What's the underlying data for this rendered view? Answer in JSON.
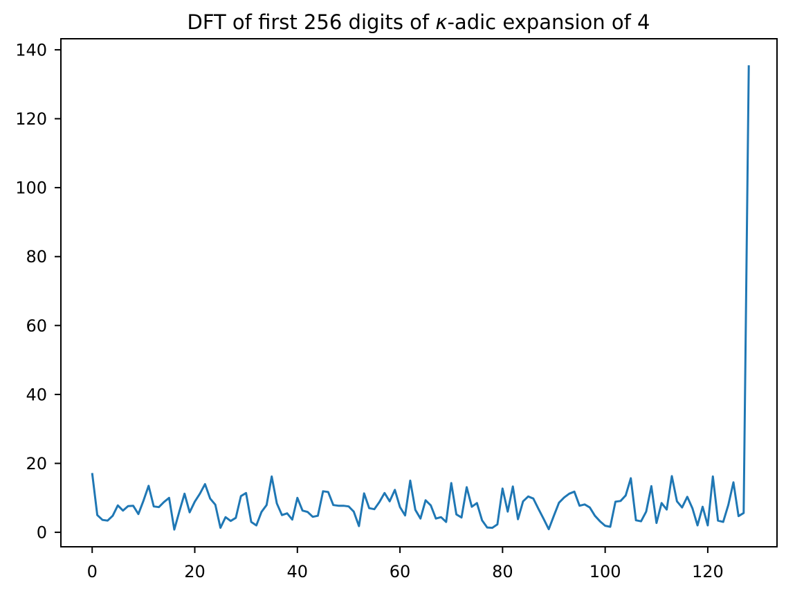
{
  "figure": {
    "title": "DFT of first 256 digits of κ-adic expansion of 4",
    "title_parts": {
      "prefix": "DFT of first 256 digits of ",
      "kappa": "κ",
      "suffix": "-adic expansion of 4"
    },
    "background_color": "#ffffff",
    "spine_color": "#000000",
    "tick_color": "#000000"
  },
  "chart_data": {
    "type": "line",
    "title": "DFT of first 256 digits of κ-adic expansion of 4",
    "xlabel": "",
    "ylabel": "",
    "grid": false,
    "legend": null,
    "line_color": "#1f77b4",
    "line_width": 3,
    "x_start": 0,
    "x_step": 1,
    "x_range": [
      0,
      128
    ],
    "xlim": [
      -6.1,
      133.5
    ],
    "ylim": [
      -4.2,
      143.2
    ],
    "xticks": [
      0,
      20,
      40,
      60,
      80,
      100,
      120
    ],
    "yticks": [
      0,
      20,
      40,
      60,
      80,
      100,
      120,
      140
    ],
    "values": [
      17.2,
      5.0,
      3.6,
      3.4,
      4.8,
      7.8,
      6.3,
      7.6,
      7.7,
      5.3,
      9.2,
      13.5,
      7.5,
      7.3,
      8.8,
      10.0,
      0.8,
      6.1,
      11.2,
      5.8,
      8.9,
      11.2,
      14.0,
      9.8,
      8.0,
      1.3,
      4.4,
      3.3,
      4.2,
      10.5,
      11.4,
      3.0,
      2.0,
      5.9,
      7.9,
      16.2,
      8.4,
      5.0,
      5.5,
      3.7,
      10.0,
      6.3,
      5.9,
      4.5,
      4.8,
      11.9,
      11.7,
      7.9,
      7.7,
      7.7,
      7.5,
      6.0,
      1.8,
      11.3,
      7.0,
      6.7,
      8.8,
      11.4,
      9.0,
      12.3,
      7.3,
      4.9,
      15.0,
      6.5,
      4.0,
      9.3,
      7.8,
      4.0,
      4.4,
      3.0,
      14.3,
      5.2,
      4.3,
      13.1,
      7.4,
      8.5,
      3.5,
      1.4,
      1.3,
      2.3,
      12.7,
      6.0,
      13.3,
      3.8,
      9.0,
      10.4,
      9.8,
      6.8,
      3.9,
      0.9,
      4.8,
      8.6,
      10.1,
      11.2,
      11.8,
      7.7,
      8.1,
      7.2,
      4.8,
      3.2,
      1.9,
      1.6,
      8.9,
      9.1,
      10.7,
      15.7,
      3.5,
      3.2,
      6.0,
      13.4,
      2.7,
      8.5,
      6.6,
      16.3,
      9.0,
      7.2,
      10.3,
      7.0,
      2.0,
      7.4,
      2.0,
      16.2,
      3.4,
      3.0,
      7.9,
      14.5,
      4.7,
      5.6,
      135.5
    ]
  }
}
